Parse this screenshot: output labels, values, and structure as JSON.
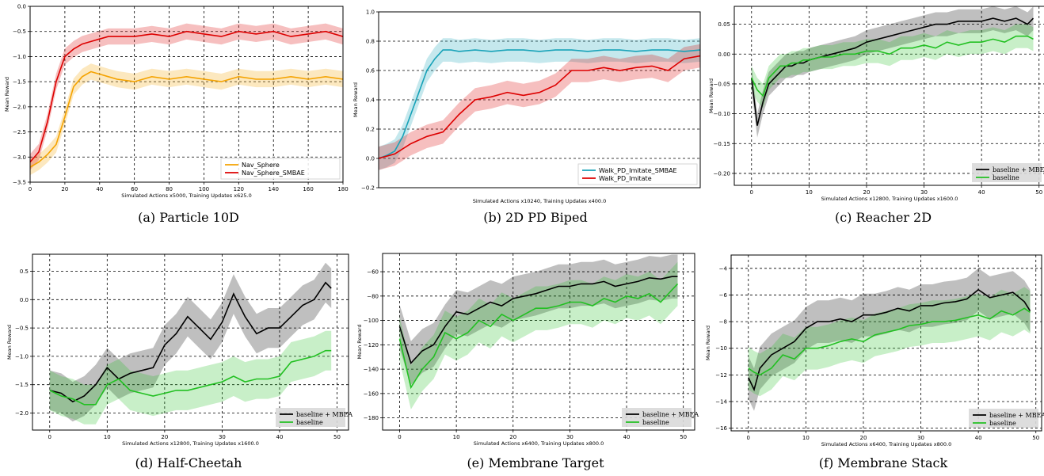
{
  "chart_data": [
    {
      "type": "line",
      "caption": "(a)  Particle 10D",
      "xlabel": "Simulated Actions x5000, Training Updates x625.0",
      "ylabel": "Mean Reward",
      "xlim": [
        0,
        180
      ],
      "ylim": [
        -3.5,
        0.0
      ],
      "xticks": [
        0,
        20,
        40,
        60,
        80,
        100,
        120,
        140,
        160,
        180
      ],
      "yticks": [
        -3.5,
        -3.0,
        -2.5,
        -2.0,
        -1.5,
        -1.0,
        -0.5,
        0.0
      ],
      "ytick_labels": [
        "−3.5",
        "−3.0",
        "−2.5",
        "−2.0",
        "−1.5",
        "−1.0",
        "−0.5",
        "0.0"
      ],
      "grid": "dashed",
      "legend_position": "lower-right",
      "legend_style": "sans",
      "band_width": 0.16,
      "series": [
        {
          "name": "Nav_Sphere",
          "color": "#f5a300",
          "x": [
            0,
            5,
            10,
            15,
            20,
            25,
            30,
            35,
            40,
            45,
            50,
            60,
            70,
            80,
            90,
            100,
            110,
            120,
            130,
            140,
            150,
            160,
            170,
            180
          ],
          "y": [
            -3.2,
            -3.1,
            -2.95,
            -2.75,
            -2.2,
            -1.6,
            -1.4,
            -1.3,
            -1.35,
            -1.4,
            -1.45,
            -1.5,
            -1.4,
            -1.45,
            -1.4,
            -1.45,
            -1.5,
            -1.4,
            -1.45,
            -1.45,
            -1.4,
            -1.45,
            -1.4,
            -1.45
          ]
        },
        {
          "name": "Nav_Sphere_SMBAE",
          "color": "#dd0000",
          "x": [
            0,
            5,
            10,
            15,
            20,
            25,
            30,
            35,
            40,
            45,
            50,
            60,
            70,
            80,
            90,
            100,
            110,
            120,
            130,
            140,
            150,
            160,
            170,
            180
          ],
          "y": [
            -3.1,
            -2.9,
            -2.3,
            -1.5,
            -1.0,
            -0.85,
            -0.75,
            -0.7,
            -0.65,
            -0.6,
            -0.6,
            -0.6,
            -0.55,
            -0.6,
            -0.5,
            -0.55,
            -0.6,
            -0.5,
            -0.55,
            -0.5,
            -0.6,
            -0.55,
            -0.5,
            -0.6
          ]
        }
      ]
    },
    {
      "type": "line",
      "caption": "(b)  2D PD Biped",
      "xlabel": "Simulated Actions x10240, Training Updates x400.0",
      "ylabel": "Mean Reward",
      "xlim": [
        0,
        200
      ],
      "ylim": [
        -0.2,
        1.0
      ],
      "xticks": [],
      "yticks": [
        -0.2,
        0.0,
        0.2,
        0.4,
        0.6,
        0.8,
        1.0
      ],
      "ytick_labels": [
        "−0.2",
        "0.0",
        "0.2",
        "0.4",
        "0.6",
        "0.8",
        "1.0"
      ],
      "grid": "dashed-horizontal",
      "legend_position": "lower-right",
      "legend_style": "sans",
      "band_width": 0.08,
      "series": [
        {
          "name": "Walk_PD_Imitate_SMBAE",
          "color": "#17a2b8",
          "x": [
            0,
            5,
            10,
            15,
            20,
            25,
            30,
            35,
            40,
            45,
            50,
            60,
            70,
            80,
            90,
            100,
            110,
            120,
            130,
            140,
            150,
            160,
            170,
            180,
            190,
            200
          ],
          "y": [
            0.0,
            0.02,
            0.05,
            0.15,
            0.3,
            0.45,
            0.6,
            0.68,
            0.74,
            0.74,
            0.73,
            0.74,
            0.73,
            0.74,
            0.74,
            0.73,
            0.74,
            0.74,
            0.73,
            0.74,
            0.74,
            0.73,
            0.74,
            0.74,
            0.73,
            0.74
          ]
        },
        {
          "name": "Walk_PD_Imitate",
          "color": "#dd0000",
          "x": [
            0,
            10,
            20,
            30,
            40,
            50,
            60,
            70,
            80,
            90,
            100,
            110,
            120,
            130,
            140,
            150,
            160,
            170,
            180,
            190,
            200
          ],
          "y": [
            0.0,
            0.03,
            0.1,
            0.15,
            0.18,
            0.3,
            0.4,
            0.42,
            0.45,
            0.43,
            0.45,
            0.5,
            0.6,
            0.6,
            0.62,
            0.6,
            0.62,
            0.63,
            0.6,
            0.68,
            0.7
          ]
        }
      ]
    },
    {
      "type": "line",
      "caption": "(c)  Reacher 2D",
      "xlabel": "Simulated Actions x12800, Training Updates x1600.0",
      "ylabel": "Mean Reward",
      "xlim": [
        -3,
        51
      ],
      "ylim": [
        -0.22,
        0.08
      ],
      "xticks": [
        0,
        10,
        20,
        30,
        40,
        50
      ],
      "yticks": [
        -0.2,
        -0.15,
        -0.1,
        -0.05,
        0.0,
        0.05
      ],
      "ytick_labels": [
        "−0.20",
        "−0.15",
        "−0.10",
        "−0.05",
        "0.00",
        "0.05"
      ],
      "grid": "dashed",
      "legend_position": "lower-right",
      "legend_style": "serif",
      "band_width": 0.02,
      "series": [
        {
          "name": "baseline + MBEA",
          "color": "#000000",
          "x": [
            0,
            1,
            2,
            3,
            4,
            5,
            6,
            7,
            8,
            9,
            10,
            12,
            14,
            16,
            18,
            20,
            22,
            24,
            26,
            28,
            30,
            32,
            34,
            36,
            38,
            40,
            42,
            44,
            46,
            48,
            49
          ],
          "y": [
            -0.04,
            -0.12,
            -0.08,
            -0.05,
            -0.04,
            -0.03,
            -0.02,
            -0.02,
            -0.015,
            -0.015,
            -0.01,
            -0.005,
            0.0,
            0.005,
            0.01,
            0.02,
            0.025,
            0.03,
            0.035,
            0.04,
            0.045,
            0.05,
            0.05,
            0.055,
            0.055,
            0.055,
            0.06,
            0.055,
            0.06,
            0.05,
            0.06
          ]
        },
        {
          "name": "baseline",
          "color": "#22c022",
          "x": [
            0,
            1,
            2,
            3,
            4,
            5,
            6,
            7,
            8,
            9,
            10,
            12,
            14,
            16,
            18,
            20,
            22,
            24,
            26,
            28,
            30,
            32,
            34,
            36,
            38,
            40,
            42,
            44,
            46,
            48,
            49
          ],
          "y": [
            -0.04,
            -0.06,
            -0.07,
            -0.04,
            -0.03,
            -0.02,
            -0.02,
            -0.015,
            -0.015,
            -0.01,
            -0.01,
            -0.005,
            -0.005,
            0.0,
            0.0,
            0.005,
            0.005,
            0.0,
            0.01,
            0.01,
            0.015,
            0.01,
            0.02,
            0.015,
            0.02,
            0.02,
            0.025,
            0.02,
            0.03,
            0.03,
            0.025
          ]
        }
      ]
    },
    {
      "type": "line",
      "caption": "(d)  Half-Cheetah",
      "xlabel": "Simulated Actions x12800, Training Updates x1600.0",
      "ylabel": "Mean Reward",
      "xlim": [
        -3,
        52
      ],
      "ylim": [
        -2.3,
        0.8
      ],
      "xticks": [
        0,
        10,
        20,
        30,
        40,
        50
      ],
      "yticks": [
        -2.0,
        -1.5,
        -1.0,
        -0.5,
        0.0,
        0.5
      ],
      "ytick_labels": [
        "−2.0",
        "−1.5",
        "−1.0",
        "−0.5",
        "0.0",
        "0.5"
      ],
      "grid": "dashed",
      "legend_position": "lower-right",
      "legend_style": "serif",
      "band_width": 0.35,
      "series": [
        {
          "name": "baseline + MBEA",
          "color": "#000000",
          "x": [
            0,
            2,
            4,
            6,
            8,
            10,
            12,
            14,
            16,
            18,
            20,
            22,
            24,
            26,
            28,
            30,
            32,
            34,
            36,
            38,
            40,
            42,
            44,
            46,
            48,
            49
          ],
          "y": [
            -1.6,
            -1.65,
            -1.8,
            -1.7,
            -1.5,
            -1.2,
            -1.4,
            -1.3,
            -1.25,
            -1.2,
            -0.8,
            -0.6,
            -0.3,
            -0.5,
            -0.7,
            -0.4,
            0.1,
            -0.3,
            -0.6,
            -0.5,
            -0.5,
            -0.3,
            -0.1,
            0.0,
            0.3,
            0.2
          ]
        },
        {
          "name": "baseline",
          "color": "#22c022",
          "x": [
            0,
            2,
            4,
            6,
            8,
            10,
            12,
            14,
            16,
            18,
            20,
            22,
            24,
            26,
            28,
            30,
            32,
            34,
            36,
            38,
            40,
            42,
            44,
            46,
            48,
            49
          ],
          "y": [
            -1.6,
            -1.7,
            -1.75,
            -1.85,
            -1.85,
            -1.5,
            -1.4,
            -1.6,
            -1.65,
            -1.7,
            -1.65,
            -1.6,
            -1.6,
            -1.55,
            -1.5,
            -1.45,
            -1.35,
            -1.45,
            -1.4,
            -1.4,
            -1.35,
            -1.1,
            -1.05,
            -1.0,
            -0.9,
            -0.9
          ]
        }
      ]
    },
    {
      "type": "line",
      "caption": "(e)  Membrane Target",
      "xlabel": "Simulated Actions x6400, Training Updates x800.0",
      "ylabel": "Mean Reward",
      "xlim": [
        -3,
        52
      ],
      "ylim": [
        -190,
        -45
      ],
      "xticks": [
        0,
        10,
        20,
        30,
        40,
        50
      ],
      "yticks": [
        -180,
        -160,
        -140,
        -120,
        -100,
        -80,
        -60
      ],
      "ytick_labels": [
        "−180",
        "−160",
        "−140",
        "−120",
        "−100",
        "−80",
        "−60"
      ],
      "grid": "dashed",
      "legend_position": "lower-right",
      "legend_style": "serif",
      "band_width": 18,
      "series": [
        {
          "name": "baseline + MBEA",
          "color": "#000000",
          "x": [
            0,
            2,
            4,
            6,
            8,
            10,
            12,
            14,
            16,
            18,
            20,
            22,
            24,
            26,
            28,
            30,
            32,
            34,
            36,
            38,
            40,
            42,
            44,
            46,
            48,
            49
          ],
          "y": [
            -105,
            -135,
            -125,
            -120,
            -105,
            -93,
            -95,
            -90,
            -85,
            -88,
            -82,
            -80,
            -78,
            -75,
            -72,
            -72,
            -70,
            -70,
            -68,
            -72,
            -70,
            -68,
            -65,
            -66,
            -64,
            -64
          ]
        },
        {
          "name": "baseline",
          "color": "#22c022",
          "x": [
            0,
            2,
            4,
            6,
            8,
            10,
            12,
            14,
            16,
            18,
            20,
            22,
            24,
            26,
            28,
            30,
            32,
            34,
            36,
            38,
            40,
            42,
            44,
            46,
            48,
            49
          ],
          "y": [
            -115,
            -155,
            -140,
            -130,
            -110,
            -115,
            -110,
            -100,
            -105,
            -95,
            -100,
            -95,
            -90,
            -90,
            -88,
            -85,
            -85,
            -88,
            -82,
            -85,
            -80,
            -82,
            -78,
            -85,
            -75,
            -70
          ]
        }
      ]
    },
    {
      "type": "line",
      "caption": "(f)  Membrane Stack",
      "xlabel": "Simulated Actions x6400, Training Updates x800.0",
      "ylabel": "Mean Reward",
      "xlim": [
        -3,
        51
      ],
      "ylim": [
        -16.2,
        -3.0
      ],
      "xticks": [
        0,
        10,
        20,
        30,
        40,
        50
      ],
      "yticks": [
        -16,
        -14,
        -12,
        -10,
        -8,
        -6,
        -4
      ],
      "ytick_labels": [
        "−16",
        "−14",
        "−12",
        "−10",
        "−8",
        "−6",
        "−4"
      ],
      "grid": "dashed",
      "legend_position": "lower-right",
      "legend_style": "serif",
      "band_width": 1.6,
      "series": [
        {
          "name": "baseline + MBEA",
          "color": "#000000",
          "x": [
            0,
            1,
            2,
            4,
            6,
            8,
            10,
            12,
            14,
            16,
            18,
            20,
            22,
            24,
            26,
            28,
            30,
            32,
            34,
            36,
            38,
            40,
            42,
            44,
            46,
            48,
            49
          ],
          "y": [
            -12.2,
            -13.1,
            -11.5,
            -10.5,
            -10.0,
            -9.5,
            -8.5,
            -8.0,
            -8.0,
            -7.8,
            -8.0,
            -7.5,
            -7.5,
            -7.3,
            -7.0,
            -7.2,
            -6.8,
            -6.8,
            -6.6,
            -6.5,
            -6.3,
            -5.6,
            -6.2,
            -6.0,
            -5.8,
            -6.5,
            -7.2
          ]
        },
        {
          "name": "baseline",
          "color": "#22c022",
          "x": [
            0,
            1,
            2,
            4,
            6,
            8,
            10,
            12,
            14,
            16,
            18,
            20,
            22,
            24,
            26,
            28,
            30,
            32,
            34,
            36,
            38,
            40,
            42,
            44,
            46,
            48,
            49
          ],
          "y": [
            -11.5,
            -11.8,
            -12.0,
            -11.5,
            -10.5,
            -10.8,
            -10.0,
            -10.0,
            -9.8,
            -9.5,
            -9.3,
            -9.5,
            -9.0,
            -8.8,
            -8.6,
            -8.3,
            -8.2,
            -8.0,
            -8.0,
            -7.9,
            -7.7,
            -7.5,
            -7.8,
            -7.2,
            -7.5,
            -7.0,
            -7.3
          ]
        }
      ]
    }
  ]
}
